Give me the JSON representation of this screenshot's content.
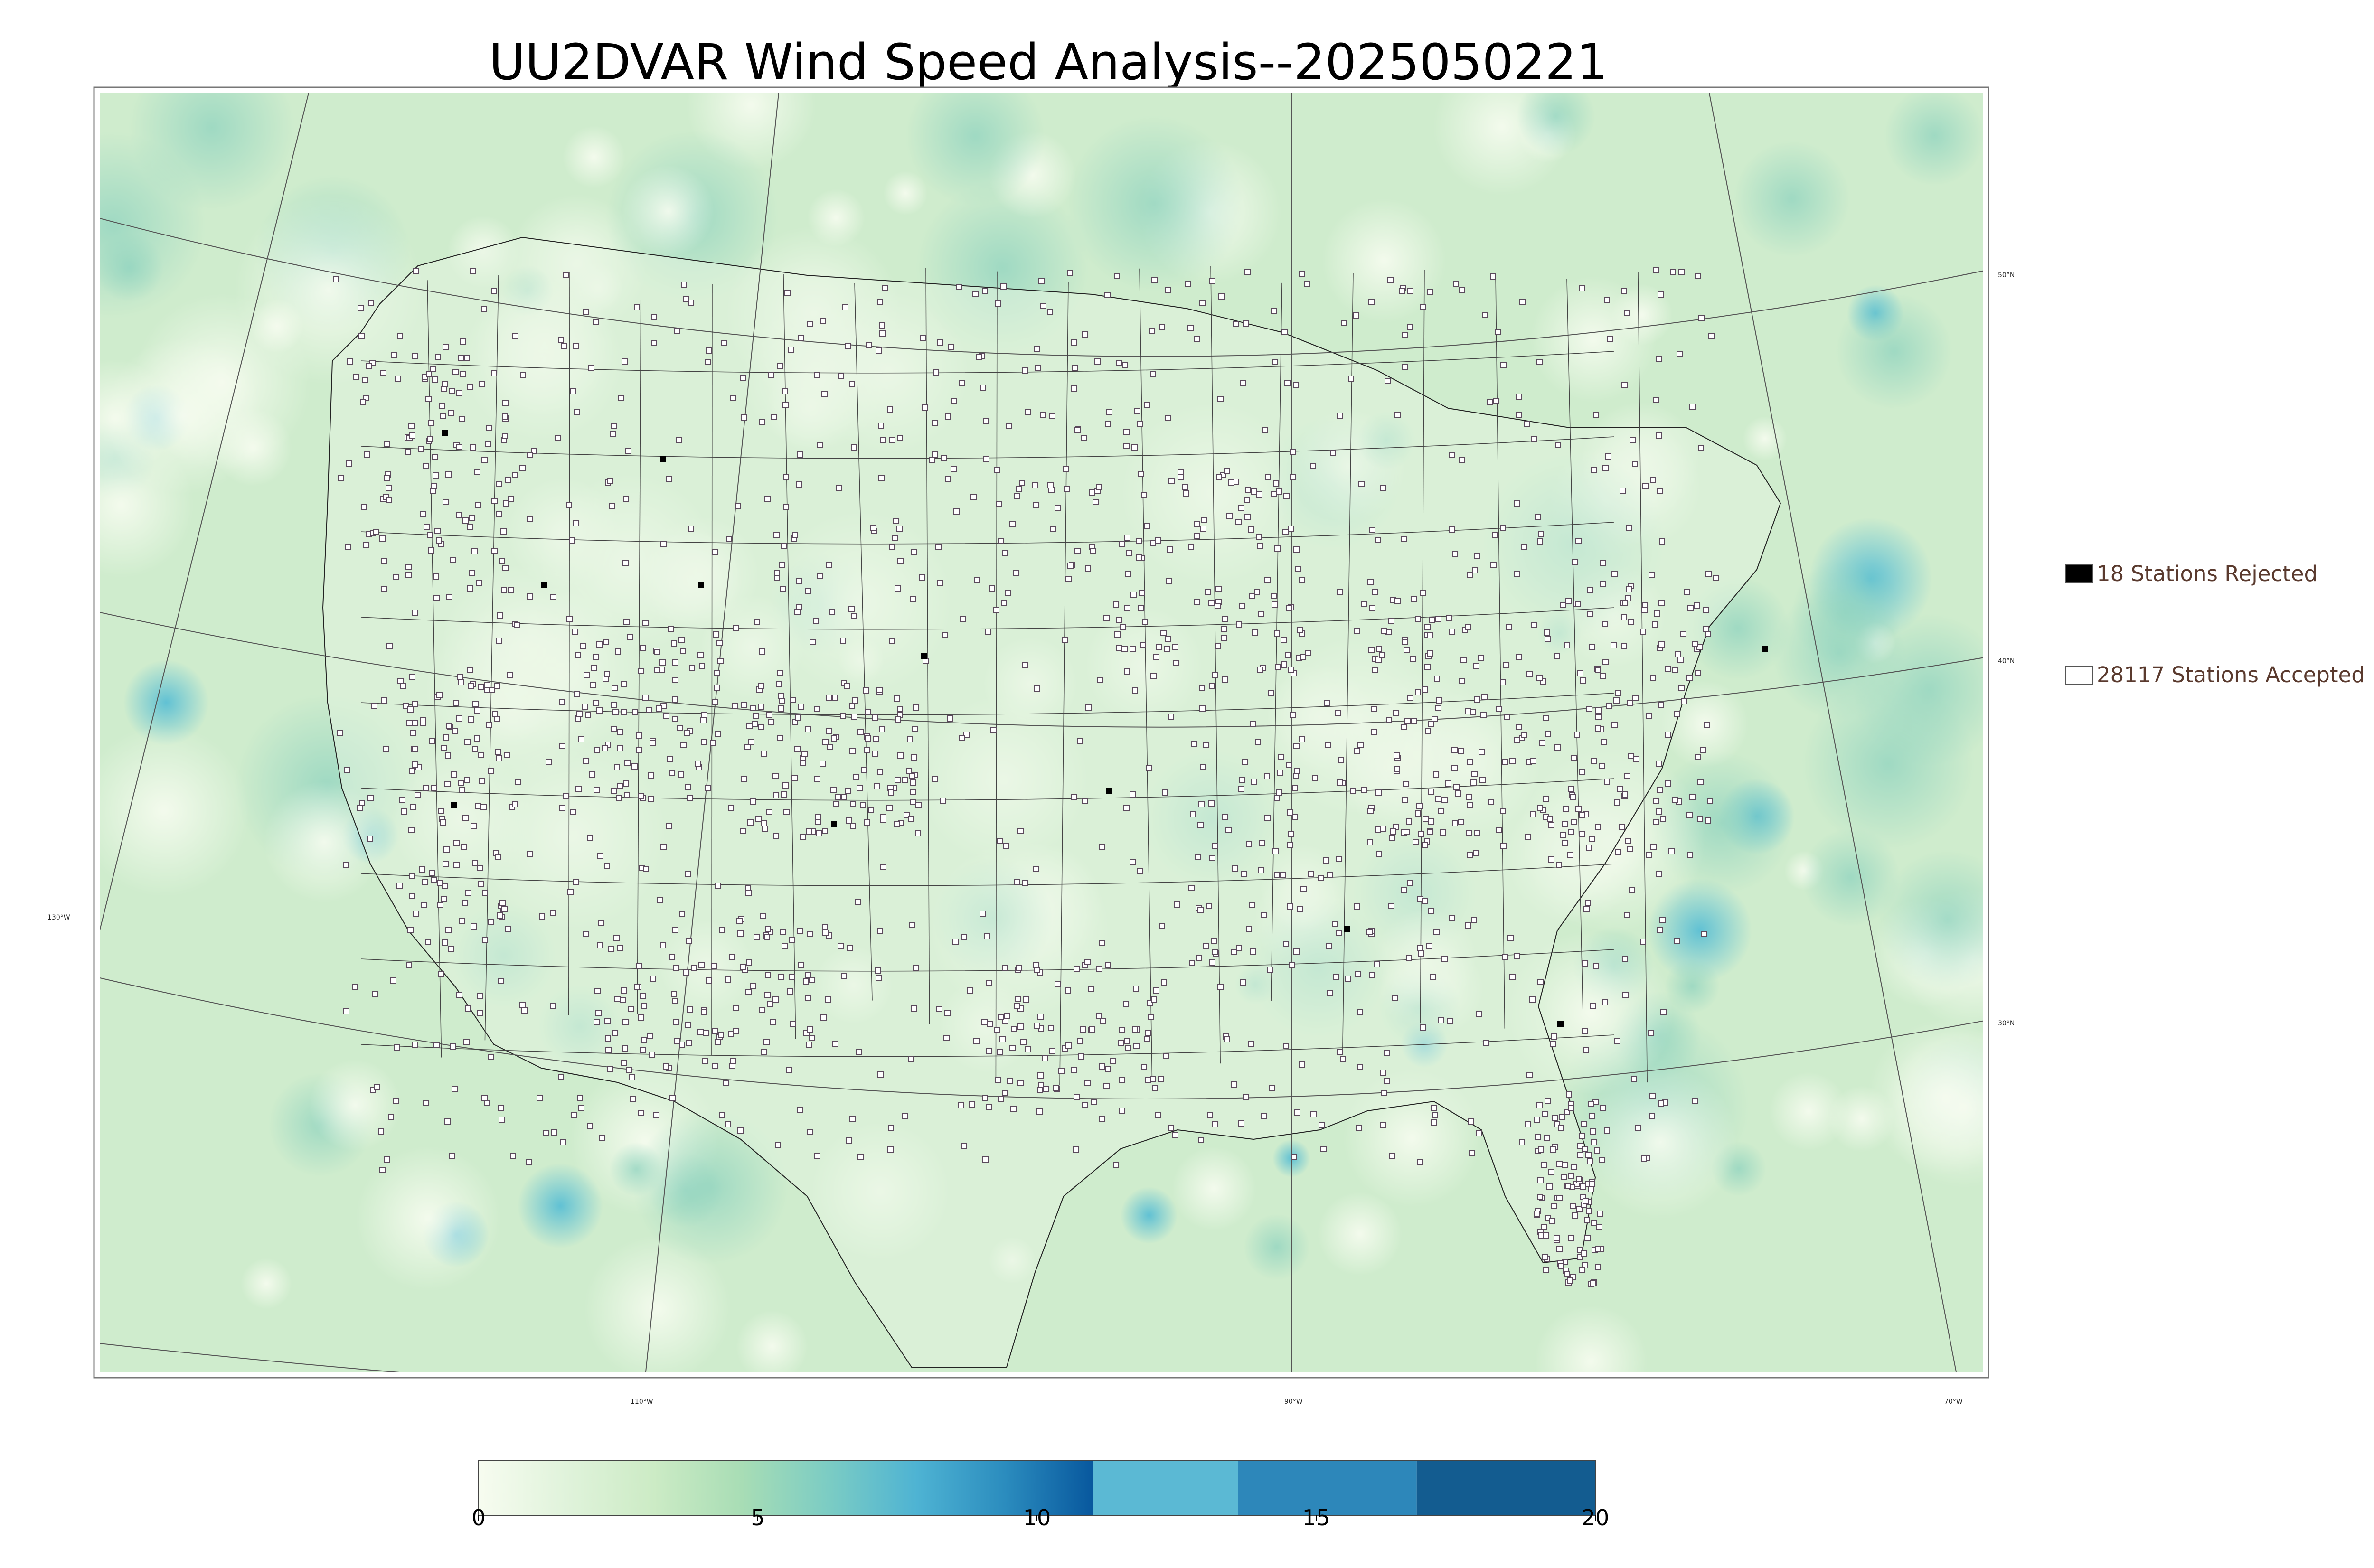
{
  "title": "UU2DVAR Wind Speed Analysis--2025050221",
  "graticule": {
    "lon_labels": [
      "130°W",
      "110°W",
      "90°W",
      "70°W"
    ],
    "lat_labels": [
      "50°N",
      "40°N",
      "30°N"
    ]
  },
  "legend": {
    "rejected": {
      "count": 18,
      "label": "18 Stations Rejected",
      "swatch_color": "#000000"
    },
    "accepted": {
      "count": 28117,
      "label": "28117 Stations Accepted",
      "swatch_color": "#ffffff"
    }
  },
  "colorbar": {
    "min": 0,
    "max": 20,
    "tick_labels": [
      "0",
      "5",
      "10",
      "15",
      "20"
    ],
    "colors": [
      "#f7fcf0",
      "#e0f3db",
      "#ccebc5",
      "#a8ddb5",
      "#7bccc4",
      "#4eb3d3",
      "#2b8cbe",
      "#08589e"
    ]
  },
  "map": {
    "background_color": "#cfeccd",
    "ocean_color": "#bfe6c8",
    "land_color": "#e3f4df",
    "calm_color": "#f2faef",
    "high_wind_color": "#6cc4d6"
  }
}
